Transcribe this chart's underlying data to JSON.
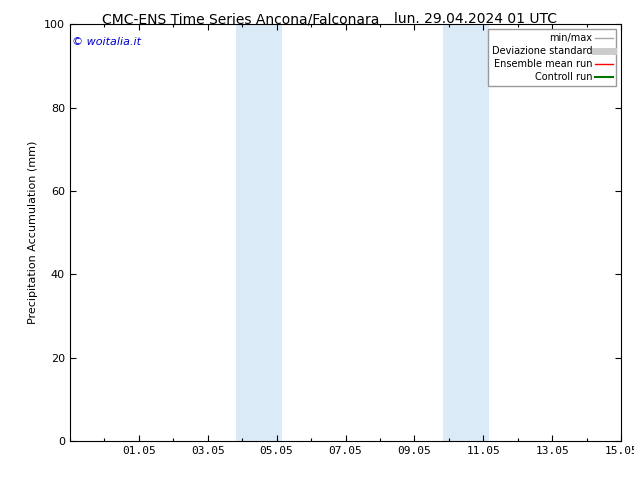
{
  "title_left": "CMC-ENS Time Series Ancona/Falconara",
  "title_right": "lun. 29.04.2024 01 UTC",
  "ylabel": "Precipitation Accumulation (mm)",
  "ylim": [
    0,
    100
  ],
  "yticks": [
    0,
    20,
    40,
    60,
    80,
    100
  ],
  "xtick_labels": [
    "01.05",
    "03.05",
    "05.05",
    "07.05",
    "09.05",
    "11.05",
    "13.05",
    "15.05"
  ],
  "xtick_positions": [
    2,
    4,
    6,
    8,
    10,
    12,
    14,
    16
  ],
  "x_min": 0,
  "x_max": 16,
  "shaded_regions": [
    {
      "x_start": 4.83,
      "x_end": 5.5,
      "color": "#daeaf7"
    },
    {
      "x_start": 5.5,
      "x_end": 6.17,
      "color": "#daeaf7"
    },
    {
      "x_start": 10.83,
      "x_end": 11.5,
      "color": "#daeaf7"
    },
    {
      "x_start": 11.5,
      "x_end": 12.17,
      "color": "#daeaf7"
    }
  ],
  "watermark_text": "© woitalia.it",
  "watermark_color": "#0000cc",
  "background_color": "#ffffff",
  "legend_items": [
    {
      "label": "min/max",
      "color": "#aaaaaa",
      "lw": 1.0
    },
    {
      "label": "Deviazione standard",
      "color": "#cccccc",
      "lw": 5
    },
    {
      "label": "Ensemble mean run",
      "color": "#ff0000",
      "lw": 1.0
    },
    {
      "label": "Controll run",
      "color": "#007700",
      "lw": 1.5
    }
  ],
  "title_fontsize": 10,
  "tick_fontsize": 8,
  "ylabel_fontsize": 8,
  "watermark_fontsize": 8
}
